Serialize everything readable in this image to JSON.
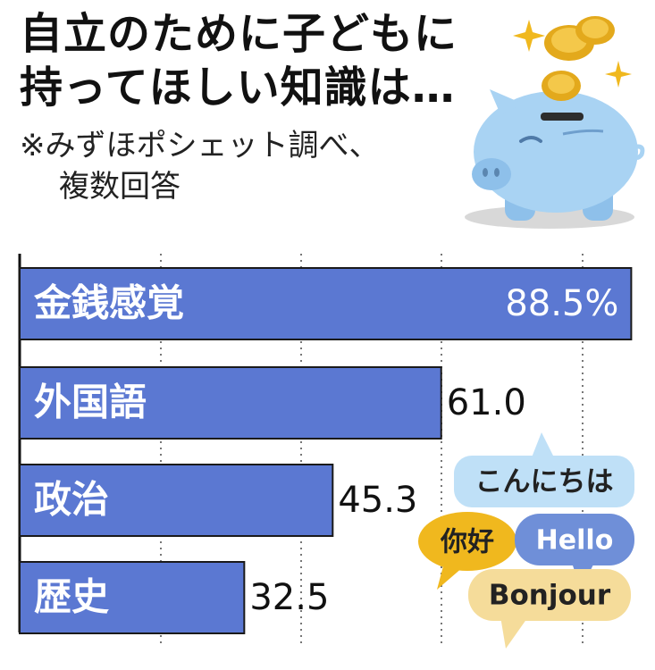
{
  "title_line1": "自立のために子どもに",
  "title_line2": "持ってほしい知識は…",
  "note_line1": "※みずほポシェット調べ、",
  "note_line2": "複数回答",
  "chart_data": {
    "type": "bar",
    "orientation": "horizontal",
    "categories": [
      "金銭感覚",
      "外国語",
      "政治",
      "歴史"
    ],
    "values": [
      88.5,
      61.0,
      45.3,
      32.5
    ],
    "value_labels": [
      "88.5%",
      "61.0",
      "45.3",
      "32.5"
    ],
    "xlim": [
      0,
      90
    ],
    "grid": "vertical dotted",
    "bar_color": "#5b78d2"
  },
  "illustration": {
    "piggy_bank_icon": "piggy-bank",
    "coins_icon": "gold-coins",
    "bubbles": [
      "こんにちは",
      "你好",
      "Hello",
      "Bonjour"
    ]
  }
}
